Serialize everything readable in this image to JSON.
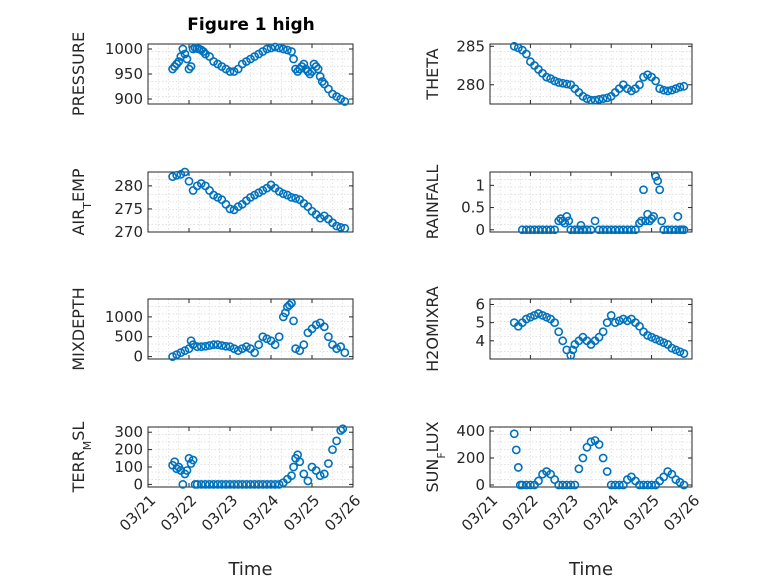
{
  "figure_title": "Figure 1 high",
  "colors": {
    "marker": "#0072BD",
    "axis": "#262626",
    "grid": "#d9d9d9"
  },
  "chart_data": [
    {
      "type": "scatter",
      "name": "pressure",
      "ylabel": "PRESSURE",
      "ylim": [
        890,
        1010
      ],
      "yticks": [
        900,
        950,
        1000
      ],
      "yticklabels": [
        "900",
        "950",
        "1000"
      ],
      "xlim": [
        0,
        5
      ],
      "xticks": [],
      "xticklabels": [],
      "xlabel": "",
      "x": [
        0.6,
        0.65,
        0.7,
        0.75,
        0.8,
        0.85,
        0.9,
        0.95,
        1.0,
        1.05,
        1.1,
        1.15,
        1.2,
        1.25,
        1.3,
        1.35,
        1.4,
        1.5,
        1.6,
        1.7,
        1.8,
        1.9,
        2.0,
        2.1,
        2.2,
        2.3,
        2.4,
        2.5,
        2.6,
        2.7,
        2.8,
        2.9,
        3.0,
        3.1,
        3.2,
        3.3,
        3.4,
        3.5,
        3.55,
        3.6,
        3.65,
        3.7,
        3.75,
        3.8,
        3.85,
        3.9,
        3.95,
        4.0,
        4.05,
        4.1,
        4.15,
        4.2,
        4.25,
        4.3,
        4.4,
        4.5,
        4.6,
        4.7,
        4.8
      ],
      "y": [
        960,
        965,
        970,
        975,
        985,
        1000,
        990,
        980,
        960,
        965,
        1000,
        1002,
        1001,
        1000,
        998,
        995,
        990,
        985,
        975,
        970,
        965,
        960,
        955,
        955,
        960,
        970,
        975,
        980,
        985,
        990,
        995,
        1000,
        1002,
        1004,
        1002,
        1000,
        998,
        995,
        980,
        960,
        955,
        960,
        965,
        970,
        960,
        955,
        950,
        955,
        970,
        965,
        960,
        945,
        935,
        930,
        920,
        910,
        905,
        900,
        895
      ]
    },
    {
      "type": "scatter",
      "name": "theta",
      "ylabel": "THETA",
      "ylim": [
        277.5,
        285.3
      ],
      "yticks": [
        280,
        285
      ],
      "yticklabels": [
        "280",
        "285"
      ],
      "xlim": [
        0,
        5
      ],
      "xticks": [],
      "xticklabels": [],
      "xlabel": "",
      "x": [
        0.6,
        0.7,
        0.8,
        0.9,
        1.0,
        1.1,
        1.2,
        1.3,
        1.4,
        1.5,
        1.6,
        1.7,
        1.8,
        1.9,
        2.0,
        2.1,
        2.2,
        2.3,
        2.4,
        2.5,
        2.6,
        2.7,
        2.8,
        2.9,
        3.0,
        3.1,
        3.2,
        3.3,
        3.4,
        3.5,
        3.6,
        3.7,
        3.8,
        3.9,
        4.0,
        4.1,
        4.2,
        4.3,
        4.4,
        4.5,
        4.6,
        4.7,
        4.8
      ],
      "y": [
        285,
        284.8,
        284.5,
        284,
        283,
        282.5,
        282,
        281.5,
        281,
        280.8,
        280.5,
        280.3,
        280.2,
        280.1,
        280,
        279.5,
        279,
        278.5,
        278.2,
        278,
        278,
        278.1,
        278.2,
        278.3,
        278.5,
        279,
        279.5,
        280,
        279.5,
        279.2,
        279.5,
        280,
        281,
        281.3,
        281,
        280.5,
        279.5,
        279.3,
        279.2,
        279.3,
        279.5,
        279.7,
        279.8
      ]
    },
    {
      "type": "scatter",
      "name": "air_temp",
      "ylabel": "AIR_TEMP",
      "ylabel_display": [
        "AIR",
        "T",
        "EMP"
      ],
      "ylim": [
        270,
        283
      ],
      "yticks": [
        270,
        275,
        280
      ],
      "yticklabels": [
        "270",
        "275",
        "280"
      ],
      "xlim": [
        0,
        5
      ],
      "xticks": [],
      "xticklabels": [],
      "xlabel": "",
      "x": [
        0.6,
        0.7,
        0.8,
        0.9,
        1.0,
        1.1,
        1.2,
        1.3,
        1.4,
        1.5,
        1.6,
        1.7,
        1.8,
        1.9,
        2.0,
        2.1,
        2.2,
        2.3,
        2.4,
        2.5,
        2.6,
        2.7,
        2.8,
        2.9,
        3.0,
        3.1,
        3.2,
        3.3,
        3.4,
        3.5,
        3.6,
        3.7,
        3.8,
        3.9,
        4.0,
        4.1,
        4.2,
        4.3,
        4.4,
        4.5,
        4.6,
        4.7,
        4.8
      ],
      "y": [
        282,
        282.3,
        282.5,
        283,
        281,
        279,
        280,
        280.5,
        280,
        279,
        278,
        277.5,
        277,
        276,
        275,
        274.8,
        275.5,
        276,
        276.8,
        277.5,
        278,
        278.5,
        279,
        279.5,
        280.2,
        279.5,
        278.8,
        278.3,
        278,
        277.5,
        277.3,
        277,
        276.2,
        275.5,
        274.5,
        273.8,
        273,
        273.5,
        272.8,
        272,
        271.3,
        271,
        270.8
      ]
    },
    {
      "type": "scatter",
      "name": "rainfall",
      "ylabel": "RAINFALL",
      "ylim": [
        -0.05,
        1.3
      ],
      "yticks": [
        0,
        0.5,
        1
      ],
      "yticklabels": [
        "0",
        "0.5",
        "1"
      ],
      "xlim": [
        0,
        5
      ],
      "xticks": [],
      "xticklabels": [],
      "xlabel": "",
      "x": [
        0.8,
        0.9,
        1.0,
        1.1,
        1.2,
        1.3,
        1.4,
        1.5,
        1.6,
        1.7,
        1.75,
        1.8,
        1.85,
        1.9,
        1.95,
        2.0,
        2.1,
        2.2,
        2.25,
        2.3,
        2.4,
        2.5,
        2.6,
        2.7,
        2.8,
        2.9,
        3.0,
        3.1,
        3.2,
        3.3,
        3.4,
        3.5,
        3.6,
        3.7,
        3.75,
        3.8,
        3.85,
        3.9,
        3.95,
        4.0,
        4.05,
        4.1,
        4.15,
        4.2,
        4.25,
        4.3,
        4.4,
        4.5,
        4.6,
        4.65,
        4.7,
        4.75,
        4.8
      ],
      "y": [
        0,
        0,
        0,
        0,
        0,
        0,
        0,
        0,
        0,
        0.2,
        0.25,
        0.2,
        0.15,
        0.3,
        0.2,
        0,
        0,
        0,
        0.1,
        0,
        0,
        0,
        0.2,
        0,
        0,
        0,
        0,
        0,
        0,
        0,
        0,
        0,
        0,
        0.15,
        0.2,
        0.9,
        0.2,
        0.35,
        0.2,
        0.25,
        0.3,
        1.2,
        1.1,
        0.9,
        0.2,
        0,
        0,
        0,
        0,
        0.3,
        0,
        0,
        0
      ]
    },
    {
      "type": "scatter",
      "name": "mixdepth",
      "ylabel": "MIXDEPTH",
      "ylim": [
        -60,
        1450
      ],
      "yticks": [
        0,
        500,
        1000
      ],
      "yticklabels": [
        "0",
        "500",
        "1000"
      ],
      "xlim": [
        0,
        5
      ],
      "xticks": [],
      "xticklabels": [],
      "xlabel": "",
      "x": [
        0.6,
        0.7,
        0.8,
        0.9,
        1.0,
        1.05,
        1.1,
        1.2,
        1.3,
        1.4,
        1.5,
        1.6,
        1.7,
        1.8,
        1.9,
        2.0,
        2.1,
        2.2,
        2.3,
        2.4,
        2.5,
        2.6,
        2.7,
        2.8,
        2.9,
        3.0,
        3.1,
        3.2,
        3.3,
        3.35,
        3.4,
        3.45,
        3.5,
        3.55,
        3.6,
        3.7,
        3.8,
        3.9,
        4.0,
        4.1,
        4.2,
        4.3,
        4.4,
        4.5,
        4.6,
        4.7,
        4.8
      ],
      "y": [
        0,
        50,
        100,
        150,
        200,
        400,
        300,
        250,
        250,
        260,
        280,
        300,
        300,
        280,
        260,
        250,
        200,
        150,
        200,
        250,
        200,
        100,
        300,
        500,
        450,
        400,
        300,
        500,
        1000,
        1100,
        1250,
        1300,
        1350,
        900,
        200,
        150,
        300,
        600,
        700,
        800,
        850,
        750,
        500,
        300,
        200,
        250,
        100
      ]
    },
    {
      "type": "scatter",
      "name": "h2omixra",
      "ylabel": "H2OMIXRA",
      "ylim": [
        3,
        6.3
      ],
      "yticks": [
        4,
        5,
        6
      ],
      "yticklabels": [
        "4",
        "5",
        "6"
      ],
      "xlim": [
        0,
        5
      ],
      "xticks": [],
      "xticklabels": [],
      "xlabel": "",
      "x": [
        0.6,
        0.7,
        0.8,
        0.9,
        1.0,
        1.1,
        1.2,
        1.3,
        1.4,
        1.5,
        1.6,
        1.7,
        1.8,
        1.9,
        2.0,
        2.05,
        2.1,
        2.2,
        2.3,
        2.4,
        2.5,
        2.6,
        2.7,
        2.8,
        2.9,
        3.0,
        3.1,
        3.2,
        3.3,
        3.4,
        3.5,
        3.6,
        3.7,
        3.8,
        3.9,
        4.0,
        4.1,
        4.2,
        4.3,
        4.4,
        4.5,
        4.6,
        4.7,
        4.8
      ],
      "y": [
        5,
        4.8,
        5,
        5.2,
        5.3,
        5.4,
        5.5,
        5.4,
        5.3,
        5.2,
        5,
        4.5,
        4,
        3.5,
        3.2,
        3.5,
        3.8,
        4,
        4.2,
        4,
        3.8,
        4,
        4.2,
        4.5,
        5,
        5.4,
        5,
        5.1,
        5.2,
        5.1,
        5.2,
        5,
        4.8,
        4.5,
        4.3,
        4.2,
        4.1,
        4,
        3.9,
        3.8,
        3.6,
        3.5,
        3.4,
        3.3
      ]
    },
    {
      "type": "scatter",
      "name": "terr_msl",
      "ylabel": "TERR_MSL",
      "ylabel_display": [
        "TERR",
        "M",
        "SL"
      ],
      "ylim": [
        -15,
        330
      ],
      "yticks": [
        0,
        100,
        200,
        300
      ],
      "yticklabels": [
        "0",
        "100",
        "200",
        "300"
      ],
      "xlim": [
        0,
        5
      ],
      "xticks": [
        0,
        1,
        2,
        3,
        4,
        5
      ],
      "xticklabels": [
        "03/21",
        "03/22",
        "03/23",
        "03/24",
        "03/25",
        "03/26"
      ],
      "xlabel": "Time",
      "x": [
        0.6,
        0.65,
        0.7,
        0.75,
        0.8,
        0.85,
        0.9,
        0.95,
        1.0,
        1.05,
        1.1,
        1.15,
        1.2,
        1.3,
        1.4,
        1.5,
        1.6,
        1.7,
        1.8,
        1.9,
        2.0,
        2.1,
        2.2,
        2.3,
        2.4,
        2.5,
        2.6,
        2.7,
        2.8,
        2.9,
        3.0,
        3.1,
        3.2,
        3.3,
        3.4,
        3.5,
        3.55,
        3.6,
        3.65,
        3.7,
        3.8,
        3.9,
        4.0,
        4.1,
        4.2,
        4.3,
        4.4,
        4.5,
        4.6,
        4.7,
        4.75
      ],
      "y": [
        110,
        130,
        90,
        100,
        80,
        0,
        60,
        80,
        150,
        120,
        140,
        0,
        0,
        0,
        0,
        0,
        0,
        0,
        0,
        0,
        0,
        0,
        0,
        0,
        0,
        0,
        0,
        0,
        0,
        0,
        0,
        0,
        0,
        10,
        30,
        50,
        100,
        150,
        170,
        130,
        60,
        20,
        100,
        80,
        50,
        60,
        120,
        200,
        250,
        310,
        320
      ]
    },
    {
      "type": "scatter",
      "name": "sun_flux",
      "ylabel": "SUN_FLUX",
      "ylabel_display": [
        "SUN",
        "F",
        "LUX"
      ],
      "ylim": [
        -15,
        430
      ],
      "yticks": [
        0,
        200,
        400
      ],
      "yticklabels": [
        "0",
        "200",
        "400"
      ],
      "xlim": [
        0,
        5
      ],
      "xticks": [
        0,
        1,
        2,
        3,
        4,
        5
      ],
      "xticklabels": [
        "03/21",
        "03/22",
        "03/23",
        "03/24",
        "03/25",
        "03/26"
      ],
      "xlabel": "Time",
      "x": [
        0.6,
        0.65,
        0.7,
        0.75,
        0.8,
        0.9,
        1.0,
        1.1,
        1.2,
        1.3,
        1.4,
        1.5,
        1.6,
        1.7,
        1.8,
        1.9,
        2.0,
        2.1,
        2.2,
        2.3,
        2.4,
        2.5,
        2.6,
        2.7,
        2.8,
        2.9,
        3.0,
        3.1,
        3.2,
        3.3,
        3.4,
        3.5,
        3.6,
        3.7,
        3.8,
        3.9,
        4.0,
        4.1,
        4.2,
        4.3,
        4.4,
        4.5,
        4.6,
        4.7,
        4.8
      ],
      "y": [
        380,
        260,
        130,
        0,
        0,
        0,
        0,
        0,
        30,
        80,
        100,
        80,
        40,
        0,
        0,
        0,
        0,
        0,
        120,
        200,
        280,
        320,
        330,
        300,
        200,
        100,
        0,
        0,
        0,
        0,
        40,
        60,
        30,
        0,
        0,
        0,
        0,
        0,
        30,
        60,
        100,
        80,
        40,
        20,
        0
      ]
    }
  ]
}
